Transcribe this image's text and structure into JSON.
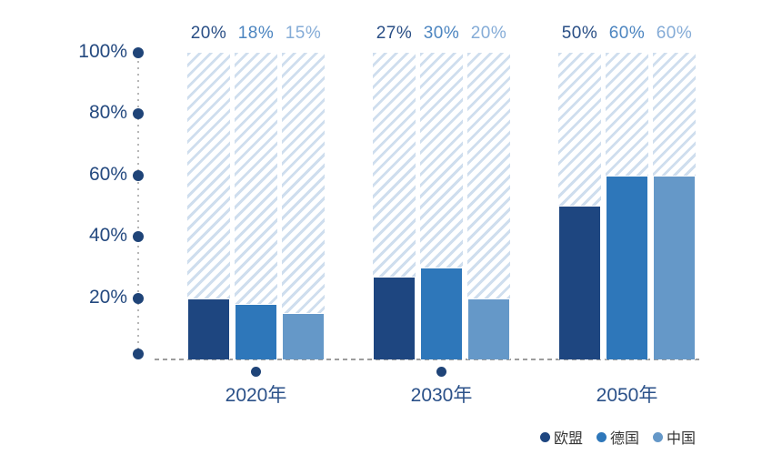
{
  "chart_data": {
    "type": "bar",
    "title": "",
    "xlabel": "",
    "ylabel": "",
    "categories": [
      "2020年",
      "2030年",
      "2050年"
    ],
    "series": [
      {
        "name": "欧盟",
        "values": [
          20,
          27,
          50
        ],
        "color": "#1e4680",
        "label_color": "#2a4f86"
      },
      {
        "name": "德国",
        "values": [
          18,
          30,
          60
        ],
        "color": "#2e77ba",
        "label_color": "#4c85c0"
      },
      {
        "name": "中国",
        "values": [
          15,
          20,
          60
        ],
        "color": "#6598c8",
        "label_color": "#85acd7"
      }
    ],
    "value_labels": [
      [
        "20%",
        "18%",
        "15%"
      ],
      [
        "27%",
        "30%",
        "20%"
      ],
      [
        "50%",
        "60%",
        "60%"
      ]
    ],
    "y_ticks": [
      {
        "label": "100%",
        "value": 100
      },
      {
        "label": "80%",
        "value": 80
      },
      {
        "label": "60%",
        "value": 60
      },
      {
        "label": "40%",
        "value": 40
      },
      {
        "label": "20%",
        "value": 20
      },
      {
        "label": "",
        "value": 0
      }
    ],
    "ylim": [
      0,
      100
    ],
    "grid": "off",
    "background_track": "hatched column to 100% behind each bar",
    "category_markers": [
      true,
      true,
      false
    ],
    "legend_position": "bottom-right"
  },
  "colors": {
    "background": "#ffffff",
    "hatch_stripe": "#cfdeee",
    "axis_dot": "#1f4478",
    "axis_line_dotted": "#b7b7b7",
    "baseline_dashed": "#9d9d9d",
    "tick_label": "#24497f",
    "category_label": "#2b5189",
    "legend_text": "#363636"
  }
}
